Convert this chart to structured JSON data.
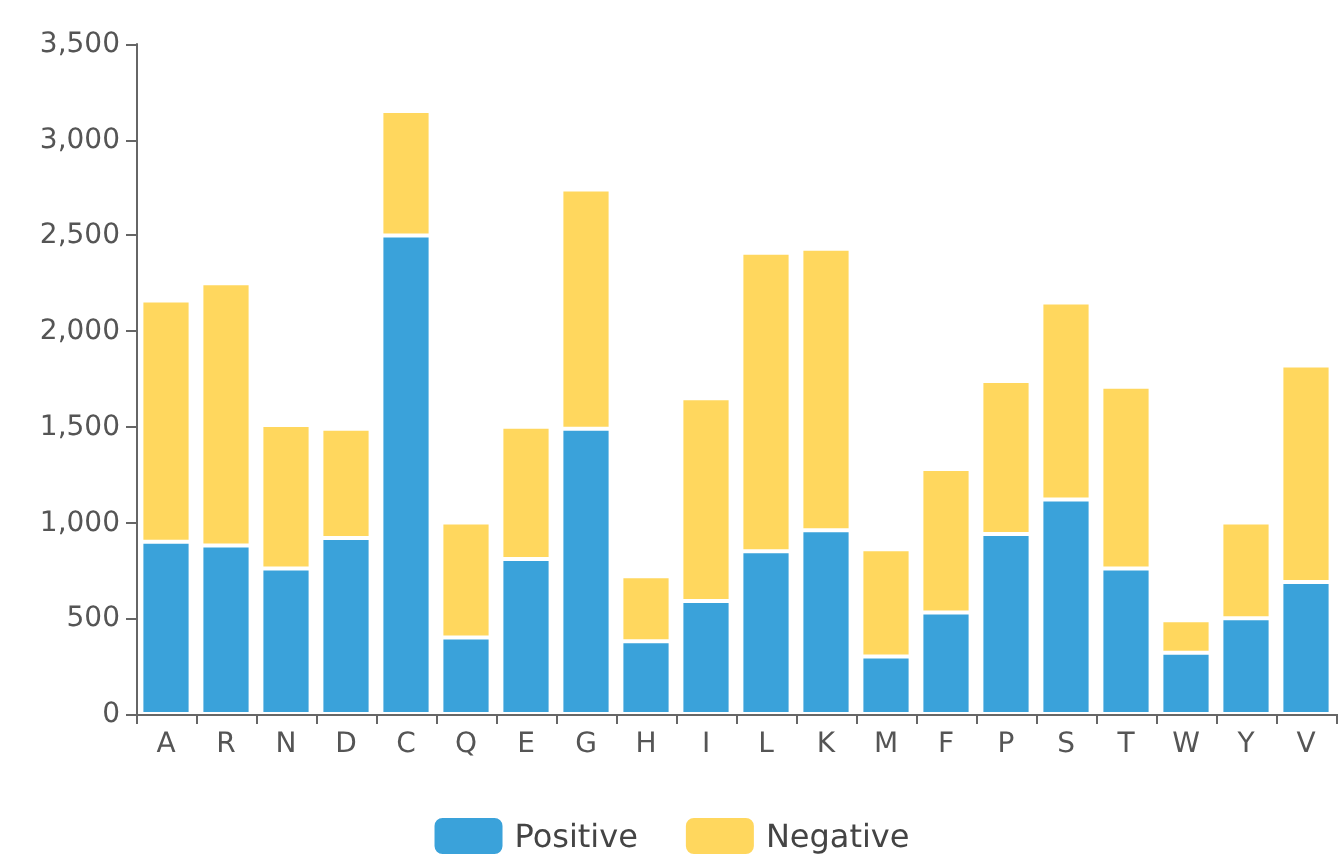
{
  "chart_data": {
    "type": "bar",
    "stacked": true,
    "categories": [
      "A",
      "R",
      "N",
      "D",
      "C",
      "Q",
      "E",
      "G",
      "H",
      "I",
      "L",
      "K",
      "M",
      "F",
      "P",
      "S",
      "T",
      "W",
      "Y",
      "V"
    ],
    "series": [
      {
        "name": "Positive",
        "color": "#3aa2da",
        "values": [
          900,
          880,
          760,
          920,
          2500,
          400,
          810,
          1490,
          380,
          590,
          850,
          960,
          300,
          530,
          940,
          1120,
          760,
          320,
          500,
          690
        ]
      },
      {
        "name": "Negative",
        "color": "#ffd75e",
        "values": [
          1260,
          1370,
          750,
          570,
          650,
          600,
          690,
          1250,
          340,
          1060,
          1560,
          1470,
          560,
          750,
          800,
          1030,
          950,
          170,
          500,
          1130
        ]
      }
    ],
    "ylim": [
      0,
      3500
    ],
    "yticks": [
      0,
      500,
      {
        "value": 1000,
        "label": "1,000"
      },
      {
        "value": 1500,
        "label": "1,500"
      },
      {
        "value": 2000,
        "label": "2,000"
      },
      {
        "value": 2500,
        "label": "2,500"
      },
      {
        "value": 3000,
        "label": "3,000"
      },
      {
        "value": 3500,
        "label": "3,500"
      }
    ],
    "grid": false,
    "legend": "bottom"
  }
}
